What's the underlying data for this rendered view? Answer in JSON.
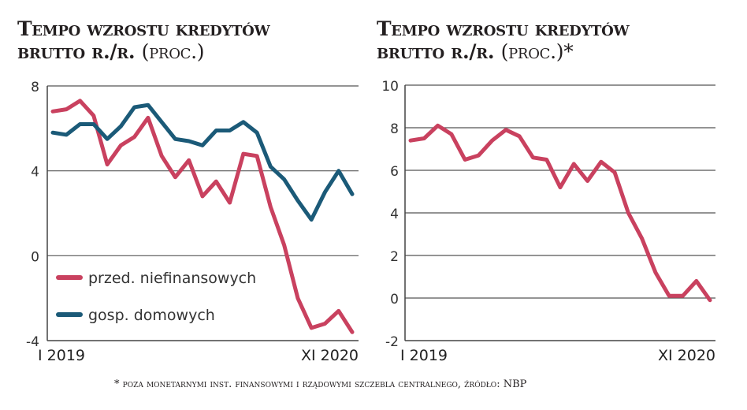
{
  "chart_data": [
    {
      "type": "line",
      "title_line1": "Tempo wzrostu kredytów",
      "title_line2": "brutto r./r.",
      "title_unit": "(proc.)",
      "x_start_label": "I 2019",
      "x_end_label": "XI 2020",
      "x_range": [
        "2019-01",
        "2020-11"
      ],
      "ylim": [
        -4,
        8
      ],
      "yticks": [
        -4,
        0,
        4,
        8
      ],
      "grid": true,
      "legend_placement": "bottom-left",
      "series": [
        {
          "name": "przed. niefinansowych",
          "color": "#c9415f",
          "values": [
            6.8,
            6.9,
            7.3,
            6.6,
            4.3,
            5.2,
            5.6,
            6.5,
            4.7,
            3.7,
            4.5,
            2.8,
            3.5,
            2.5,
            4.8,
            4.7,
            2.3,
            0.5,
            -2.0,
            -3.4,
            -3.2,
            -2.6,
            -3.6
          ]
        },
        {
          "name": "gosp. domowych",
          "color": "#1b5a78",
          "values": [
            5.8,
            5.7,
            6.2,
            6.2,
            5.5,
            6.1,
            7.0,
            7.1,
            6.3,
            5.5,
            5.4,
            5.2,
            5.9,
            5.9,
            6.3,
            5.8,
            4.2,
            3.6,
            2.6,
            1.7,
            3.0,
            4.0,
            2.9
          ]
        }
      ]
    },
    {
      "type": "line",
      "title_line1": "Tempo wzrostu kredytów",
      "title_line2": "brutto r./r.",
      "title_unit": "(proc.)*",
      "x_start_label": "I 2019",
      "x_end_label": "XI 2020",
      "x_range": [
        "2019-01",
        "2020-11"
      ],
      "ylim": [
        -2,
        10
      ],
      "yticks": [
        -2,
        0,
        2,
        4,
        6,
        8,
        10
      ],
      "grid": true,
      "series": [
        {
          "color": "#c9415f",
          "values": [
            7.4,
            7.5,
            8.1,
            7.7,
            6.5,
            6.7,
            7.4,
            7.9,
            7.6,
            6.6,
            6.5,
            5.2,
            6.3,
            5.5,
            6.4,
            5.9,
            4.0,
            2.8,
            1.2,
            0.1,
            0.1,
            0.8,
            -0.1
          ]
        }
      ]
    }
  ],
  "footnote": "* poza monetarnymi inst. finansowymi i rządowymi szczebla centralnego, źródło: NBP"
}
